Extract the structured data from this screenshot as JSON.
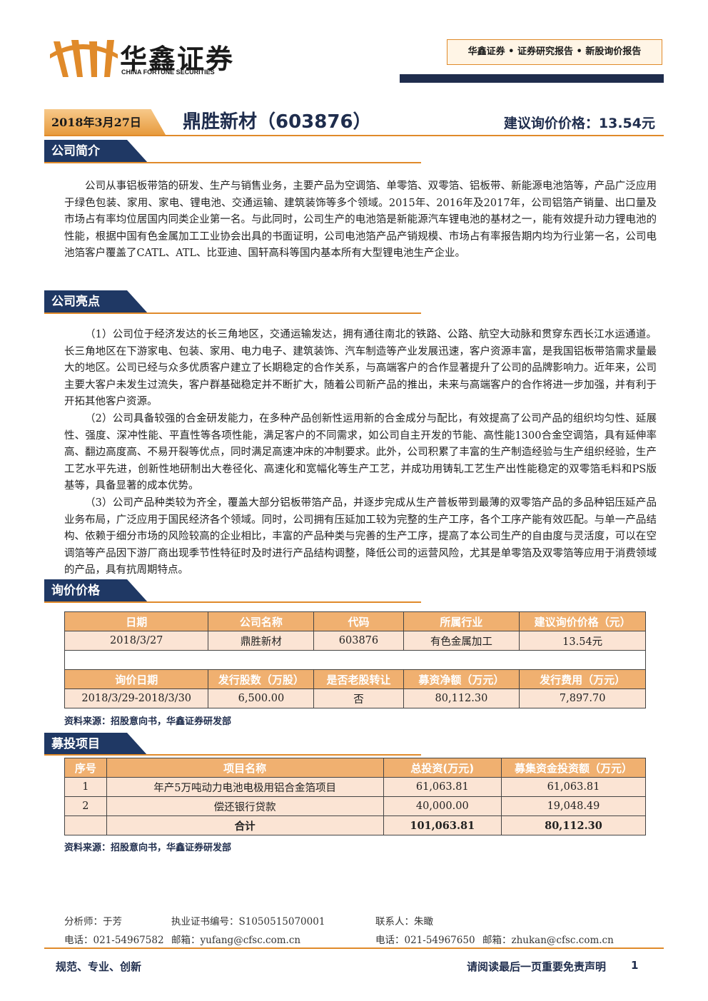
{
  "header": {
    "logo_cn": "华鑫证券",
    "logo_en": "CHINA FORTUNE SECURITIES",
    "tagline": "华鑫证券 • 证券研究报告 • 新股询价报告"
  },
  "title_bar": {
    "date": "2018年3月27日",
    "title": "鼎胜新材（603876）",
    "price": "建议询价价格：13.54元"
  },
  "intro": {
    "heading": "公司简介",
    "paragraphs": [
      "公司从事铝板带箔的研发、生产与销售业务，主要产品为空调箔、单零箔、双零箔、铝板带、新能源电池箔等，产品广泛应用于绿色包装、家用、家电、锂电池、交通运输、建筑装饰等多个领域。2015年、2016年及2017年，公司铝箔产销量、出口量及市场占有率均位居国内同类企业第一名。与此同时，公司生产的电池箔是新能源汽车锂电池的基材之一，能有效提升动力锂电池的性能，根据中国有色金属加工工业协会出具的书面证明，公司电池箔产品产销规模、市场占有率报告期内均为行业第一名，公司电池箔客户覆盖了CATL、ATL、比亚迪、国轩高科等国内基本所有大型锂电池生产企业。"
    ]
  },
  "highlights": {
    "heading": "公司亮点",
    "paragraphs": [
      "（1）公司位于经济发达的长三角地区，交通运输发达，拥有通往南北的铁路、公路、航空大动脉和贯穿东西长江水运通道。长三角地区在下游家电、包装、家用、电力电子、建筑装饰、汽车制造等产业发展迅速，客户资源丰富，是我国铝板带箔需求量最大的地区。公司已经与众多优质客户建立了长期稳定的合作关系，与高端客户的合作显著提升了公司的品牌影响力。近年来，公司主要大客户未发生过流失，客户群基础稳定并不断扩大，随着公司新产品的推出，未来与高端客户的合作将进一步加强，并有利于开拓其他客户资源。",
      "（2）公司具备较强的合金研发能力，在多种产品创新性运用新的合金成分与配比，有效提高了公司产品的组织均匀性、延展性、强度、深冲性能、平直性等各项性能，满足客户的不同需求，如公司自主开发的节能、高性能1300合金空调箔，具有延伸率高、翻边高度高、不易开裂等优点，同时满足高速冲床的冲制要求。此外，公司积累了丰富的生产制造经验与生产组织经验，生产工艺水平先进，创新性地研制出大卷径化、高速化和宽幅化等生产工艺，并成功用铸轧工艺生产出性能稳定的双零箔毛料和PS版基等，具备显著的成本优势。",
      "（3）公司产品种类较为齐全，覆盖大部分铝板带箔产品，并逐步完成从生产普板带到最薄的双零箔产品的多品种铝压延产品业务布局，广泛应用于国民经济各个领域。同时，公司拥有压延加工较为完整的生产工序，各个工序产能有效匹配。与单一产品结构、依赖于细分市场的风险较高的企业相比，丰富的产品种类与完善的生产工序，提高了本公司生产的自由度与灵活度，可以在空调箔等产品因下游厂商出现季节性特征时及时进行产品结构调整，降低公司的运营风险，尤其是单零箔及双零箔等应用于消费领域的产品，具有抗周期特点。"
    ]
  },
  "pricing": {
    "heading": "询价价格",
    "table1": {
      "header": [
        "日期",
        "公司名称",
        "代码",
        "所属行业",
        "建议询价价格（元）"
      ],
      "row": [
        "2018/3/27",
        "鼎胜新材",
        "603876",
        "有色金属加工",
        "13.54元"
      ]
    },
    "table2": {
      "header": [
        "询价日期",
        "发行股数（万股）",
        "是否老股转让",
        "募资净额（万元）",
        "发行费用（万元）"
      ],
      "row": [
        "2018/3/29-2018/3/30",
        "6,500.00",
        "否",
        "80,112.30",
        "7,897.70"
      ]
    },
    "source": "资料来源：招股意向书，华鑫证券研发部"
  },
  "projects": {
    "heading": "募投项目",
    "table": {
      "header": [
        "序号",
        "项目名称",
        "总投资(万元)",
        "募集资金投资额（万元）"
      ],
      "rows": [
        [
          "1",
          "年产5万吨动力电池电极用铝合金箔项目",
          "61,063.81",
          "61,063.81"
        ],
        [
          "2",
          "偿还银行贷款",
          "40,000.00",
          "19,048.49"
        ]
      ],
      "total": [
        "合计",
        "101,063.81",
        "80,112.30"
      ]
    },
    "source": "资料来源：招股意向书，华鑫证券研发部"
  },
  "footer": {
    "analyst": "分析师：于芳",
    "cert": "执业证书编号：S1050515070001",
    "contact": "联系人：朱瞰",
    "tel1": "电话：021-54967582",
    "email1": "邮箱：yufang@cfsc.com.cn",
    "tel2": "电话：021-54967650",
    "email2": "邮箱：zhukan@cfsc.com.cn",
    "slogan": "规范、专业、创新",
    "disclaimer": "请阅读最后一页重要免责声明",
    "page": "1"
  }
}
